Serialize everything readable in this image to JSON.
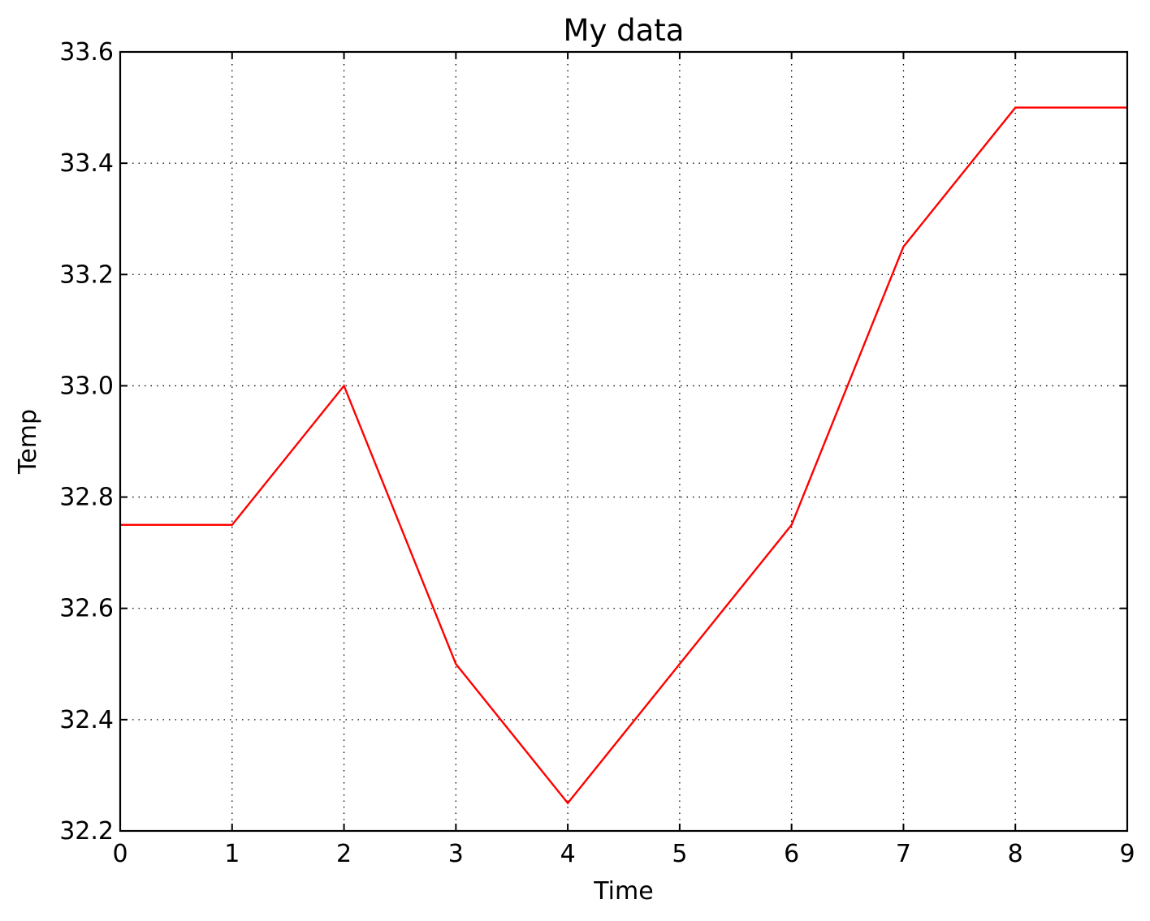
{
  "chart_data": {
    "type": "line",
    "title": "My data",
    "xlabel": "Time",
    "ylabel": "Temp",
    "xlim": [
      0,
      9
    ],
    "ylim": [
      32.2,
      33.6
    ],
    "xticks": [
      0,
      1,
      2,
      3,
      4,
      5,
      6,
      7,
      8,
      9
    ],
    "xtick_labels": [
      "0",
      "1",
      "2",
      "3",
      "4",
      "5",
      "6",
      "7",
      "8",
      "9"
    ],
    "yticks": [
      32.2,
      32.4,
      32.6,
      32.8,
      33.0,
      33.2,
      33.4,
      33.6
    ],
    "ytick_labels": [
      "32.2",
      "32.4",
      "32.6",
      "32.8",
      "33.0",
      "33.2",
      "33.4",
      "33.6"
    ],
    "grid": true,
    "series": [
      {
        "color": "#ff0000",
        "x": [
          0,
          1,
          2,
          3,
          4,
          5,
          6,
          7,
          8,
          9
        ],
        "y": [
          32.75,
          32.75,
          33.0,
          32.5,
          32.25,
          32.5,
          32.75,
          33.25,
          33.5,
          33.5
        ]
      }
    ]
  }
}
